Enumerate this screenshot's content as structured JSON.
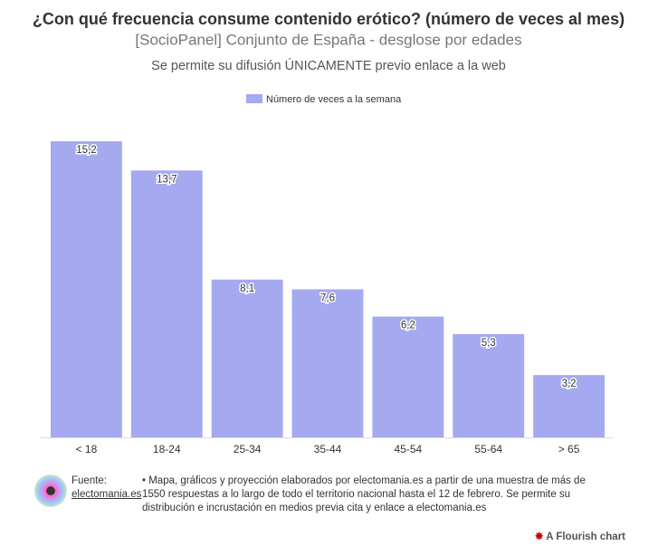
{
  "chart_data": {
    "type": "bar",
    "title": "¿Con qué frecuencia consume contenido erótico? (número de veces al mes)",
    "subtitle": "[SocioPanel] Conjunto de España - desglose por edades",
    "note": "Se permite su difusión ÚNICAMENTE previo enlace a la web",
    "categories": [
      "< 18",
      "18-24",
      "25-34",
      "35-44",
      "45-54",
      "55-64",
      "> 65"
    ],
    "series": [
      {
        "name": "Número de veces a la semana",
        "color": "#a5a9ef",
        "values": [
          15.2,
          13.7,
          8.1,
          7.6,
          6.2,
          5.3,
          3.2
        ],
        "value_labels": [
          "15,2",
          "13,7",
          "8,1",
          "7,6",
          "6,2",
          "5,3",
          "3,2"
        ]
      }
    ],
    "legend": "top"
  },
  "footer": {
    "source_label": "Fuente:",
    "source": "electomania.es",
    "text": "• Mapa, gráficos y proyección elaborados por electomania.es a partir de una muestra de más de 1550 respuestas a lo largo de todo el territorio nacional hasta el 12 de febrero. Se permite su distribución e incrustación en medios previa cita y enlace a electomania.es",
    "credit": "A Flourish chart"
  }
}
